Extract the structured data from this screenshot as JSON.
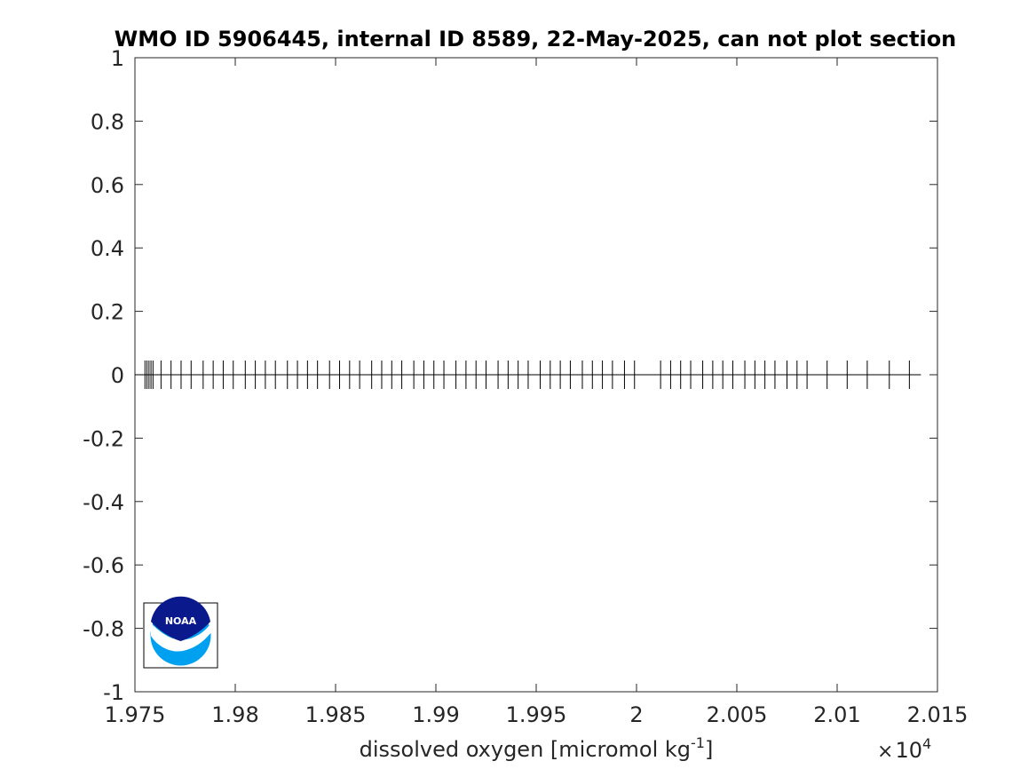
{
  "chart_data": {
    "type": "scatter",
    "title": "WMO ID 5906445, internal ID 8589, 22-May-2025, can not plot section",
    "xlabel": {
      "prefix": "dissolved oxygen [micromol kg",
      "superscript": "-1",
      "suffix": "]"
    },
    "x_exponent": {
      "times": "×",
      "base": "10",
      "power": "4"
    },
    "ylabel": "",
    "xlim": [
      19750,
      20150
    ],
    "ylim": [
      -1,
      1
    ],
    "grid": false,
    "x_ticks": [
      {
        "value": 19750,
        "label": "1.975"
      },
      {
        "value": 19800,
        "label": "1.98"
      },
      {
        "value": 19850,
        "label": "1.985"
      },
      {
        "value": 19900,
        "label": "1.99"
      },
      {
        "value": 19950,
        "label": "1.995"
      },
      {
        "value": 20000,
        "label": "2"
      },
      {
        "value": 20050,
        "label": "2.005"
      },
      {
        "value": 20100,
        "label": "2.01"
      },
      {
        "value": 20150,
        "label": "2.015"
      }
    ],
    "y_ticks": [
      {
        "value": 1,
        "label": "1"
      },
      {
        "value": 0.8,
        "label": "0.8"
      },
      {
        "value": 0.6,
        "label": "0.6"
      },
      {
        "value": 0.4,
        "label": "0.4"
      },
      {
        "value": 0.2,
        "label": "0.2"
      },
      {
        "value": 0,
        "label": "0"
      },
      {
        "value": -0.2,
        "label": "-0.2"
      },
      {
        "value": -0.4,
        "label": "-0.4"
      },
      {
        "value": -0.6,
        "label": "-0.6"
      },
      {
        "value": -0.8,
        "label": "-0.8"
      },
      {
        "value": -1,
        "label": "-1"
      }
    ],
    "marker": "|",
    "marker_color": "#000000",
    "line_y": 0,
    "line_x_range": [
      19750,
      20140
    ],
    "series": [
      {
        "x": [
          19755,
          19756,
          19757,
          19758,
          19759,
          19763,
          19768,
          19773,
          19778,
          19784,
          19789,
          19794,
          19799,
          19805,
          19810,
          19815,
          19820,
          19826,
          19831,
          19836,
          19841,
          19847,
          19852,
          19857,
          19862,
          19868,
          19873,
          19878,
          19883,
          19889,
          19894,
          19899,
          19904,
          19910,
          19915,
          19920,
          19925,
          19931,
          19936,
          19941,
          19946,
          19952,
          19957,
          19962,
          19967,
          19973,
          19978,
          19983,
          19988,
          19994,
          19999,
          20012,
          20017,
          20022,
          20027,
          20033,
          20038,
          20043,
          20048,
          20054,
          20059,
          20064,
          20069,
          20075,
          20080,
          20085,
          20095,
          20105,
          20115,
          20126,
          20136
        ],
        "y": [
          0,
          0,
          0,
          0,
          0,
          0,
          0,
          0,
          0,
          0,
          0,
          0,
          0,
          0,
          0,
          0,
          0,
          0,
          0,
          0,
          0,
          0,
          0,
          0,
          0,
          0,
          0,
          0,
          0,
          0,
          0,
          0,
          0,
          0,
          0,
          0,
          0,
          0,
          0,
          0,
          0,
          0,
          0,
          0,
          0,
          0,
          0,
          0,
          0,
          0,
          0,
          0,
          0,
          0,
          0,
          0,
          0,
          0,
          0,
          0,
          0,
          0,
          0,
          0,
          0,
          0,
          0,
          0,
          0,
          0,
          0
        ]
      }
    ]
  },
  "logo": {
    "text": "NOAA",
    "colors": {
      "dark": "#0a1a8c",
      "light": "#00a0f0"
    }
  }
}
